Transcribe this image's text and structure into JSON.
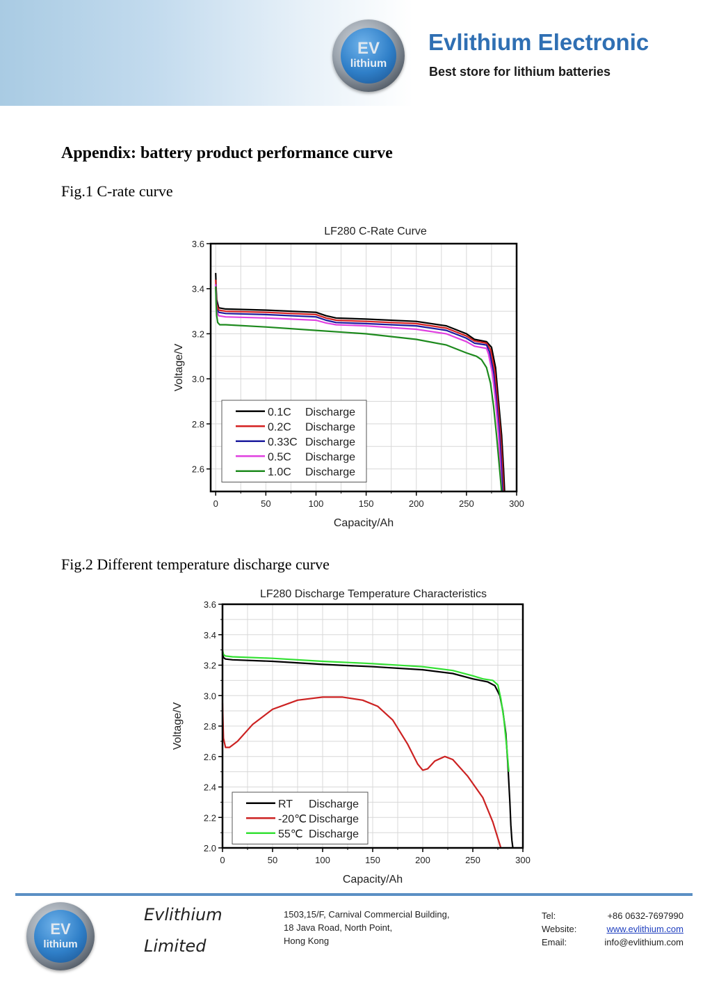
{
  "header": {
    "logo_ev": "EV",
    "logo_lithium": "lithium",
    "brand_name": "Evlithium Electronic",
    "tagline": "Best store for lithium batteries"
  },
  "appendix_title": "Appendix: battery product performance curve",
  "fig1_caption": "Fig.1 C-rate curve",
  "fig2_caption": "Fig.2 Different temperature discharge curve",
  "chart_data": [
    {
      "type": "line",
      "title": "LF280 C-Rate Curve",
      "xlabel": "Capacity/Ah",
      "ylabel": "Voltage/V",
      "xlim": [
        -5,
        300
      ],
      "ylim": [
        2.5,
        3.6
      ],
      "xticks": [
        "0",
        "50",
        "100",
        "150",
        "200",
        "250",
        "300"
      ],
      "yticks": [
        "2.6",
        "2.8",
        "3.0",
        "3.2",
        "3.4",
        "3.6"
      ],
      "grid": true,
      "legend_position": "bottom-left",
      "series": [
        {
          "name": "0.1C",
          "label": "Discharge",
          "color": "#000000",
          "x": [
            0,
            0.5,
            1,
            3,
            10,
            50,
            100,
            110,
            120,
            150,
            200,
            230,
            250,
            258,
            270,
            275,
            279,
            282,
            285,
            287,
            288
          ],
          "y": [
            3.47,
            3.4,
            3.35,
            3.315,
            3.31,
            3.305,
            3.295,
            3.28,
            3.27,
            3.265,
            3.255,
            3.235,
            3.2,
            3.175,
            3.165,
            3.14,
            3.05,
            2.9,
            2.75,
            2.6,
            2.5
          ]
        },
        {
          "name": "0.2C",
          "label": "Discharge",
          "color": "#d42020",
          "x": [
            0,
            0.5,
            1,
            3,
            10,
            50,
            100,
            110,
            120,
            150,
            200,
            230,
            250,
            258,
            270,
            274,
            278,
            281,
            284,
            286,
            287
          ],
          "y": [
            3.44,
            3.38,
            3.33,
            3.305,
            3.3,
            3.295,
            3.285,
            3.27,
            3.26,
            3.255,
            3.245,
            3.225,
            3.19,
            3.168,
            3.158,
            3.13,
            3.04,
            2.9,
            2.75,
            2.6,
            2.5
          ]
        },
        {
          "name": "0.33C",
          "label": "Discharge",
          "color": "#1c1c9e",
          "x": [
            0,
            0.5,
            1,
            3,
            10,
            50,
            100,
            110,
            120,
            150,
            200,
            230,
            250,
            258,
            270,
            273,
            277,
            280,
            283,
            285,
            286
          ],
          "y": [
            3.42,
            3.36,
            3.31,
            3.295,
            3.29,
            3.285,
            3.275,
            3.26,
            3.25,
            3.245,
            3.235,
            3.215,
            3.18,
            3.158,
            3.15,
            3.12,
            3.03,
            2.9,
            2.75,
            2.6,
            2.5
          ]
        },
        {
          "name": "0.5C",
          "label": "Discharge",
          "color": "#e040e0",
          "x": [
            0,
            0.5,
            1,
            3,
            10,
            50,
            100,
            110,
            120,
            150,
            200,
            230,
            250,
            258,
            270,
            272,
            276,
            279,
            282,
            284,
            285
          ],
          "y": [
            3.42,
            3.35,
            3.3,
            3.28,
            3.275,
            3.27,
            3.26,
            3.248,
            3.24,
            3.235,
            3.22,
            3.2,
            3.165,
            3.145,
            3.135,
            3.11,
            3.02,
            2.9,
            2.75,
            2.6,
            2.5
          ]
        },
        {
          "name": "1.0C",
          "label": "Discharge",
          "color": "#1e8a1e",
          "x": [
            0,
            0.5,
            1,
            2,
            4,
            10,
            50,
            100,
            150,
            200,
            230,
            250,
            260,
            265,
            270,
            274,
            277,
            280,
            283,
            285
          ],
          "y": [
            3.41,
            3.33,
            3.28,
            3.25,
            3.24,
            3.24,
            3.23,
            3.215,
            3.2,
            3.175,
            3.15,
            3.115,
            3.1,
            3.085,
            3.05,
            2.98,
            2.88,
            2.75,
            2.6,
            2.5
          ]
        }
      ]
    },
    {
      "type": "line",
      "title": "LF280 Discharge Temperature Characteristics",
      "xlabel": "Capacity/Ah",
      "ylabel": "Voltage/V",
      "xlim": [
        0,
        300
      ],
      "ylim": [
        2.0,
        3.6
      ],
      "xticks": [
        "0",
        "50",
        "100",
        "150",
        "200",
        "250",
        "300"
      ],
      "yticks": [
        "2.0",
        "2.2",
        "2.4",
        "2.6",
        "2.8",
        "3.0",
        "3.2",
        "3.4",
        "3.6"
      ],
      "grid": true,
      "legend_position": "bottom-left",
      "series": [
        {
          "name": "RT",
          "label": "Discharge",
          "color": "#000000",
          "x": [
            0,
            1,
            3,
            10,
            50,
            100,
            150,
            200,
            230,
            250,
            265,
            272,
            277,
            280,
            283,
            285,
            287,
            288,
            289,
            290
          ],
          "y": [
            3.29,
            3.25,
            3.24,
            3.235,
            3.225,
            3.205,
            3.19,
            3.17,
            3.145,
            3.11,
            3.09,
            3.065,
            3.0,
            2.9,
            2.75,
            2.55,
            2.3,
            2.15,
            2.05,
            2.0
          ]
        },
        {
          "name": "-20℃",
          "label": "Discharge",
          "color": "#cc2222",
          "x": [
            0,
            1,
            3,
            7,
            15,
            30,
            50,
            75,
            100,
            120,
            140,
            155,
            170,
            185,
            195,
            200,
            205,
            212,
            222,
            230,
            245,
            260,
            270,
            278
          ],
          "y": [
            2.95,
            2.72,
            2.66,
            2.66,
            2.7,
            2.81,
            2.91,
            2.97,
            2.99,
            2.99,
            2.97,
            2.93,
            2.84,
            2.68,
            2.55,
            2.51,
            2.52,
            2.57,
            2.6,
            2.58,
            2.47,
            2.33,
            2.17,
            2.0
          ]
        },
        {
          "name": "55℃",
          "label": "Discharge",
          "color": "#33e033",
          "x": [
            0,
            1,
            3,
            10,
            50,
            100,
            150,
            200,
            230,
            250,
            260,
            270,
            275,
            278,
            281,
            284,
            286
          ],
          "y": [
            3.3,
            3.27,
            3.26,
            3.255,
            3.245,
            3.225,
            3.21,
            3.19,
            3.165,
            3.13,
            3.11,
            3.1,
            3.07,
            2.98,
            2.85,
            2.65,
            2.5
          ]
        }
      ]
    }
  ],
  "footer": {
    "company_line1": "Evlithium",
    "company_line2": "Limited",
    "address_line1": "1503,15/F, Carnival Commercial Building,",
    "address_line2": "18 Java Road, North Point,",
    "address_line3": "Hong Kong",
    "tel_label": "Tel:",
    "tel_value": "+86  0632-7697990",
    "website_label": "Website:",
    "website_value": "www.evlithium.com",
    "email_label": "Email:",
    "email_value": "info@evlithium.com"
  }
}
